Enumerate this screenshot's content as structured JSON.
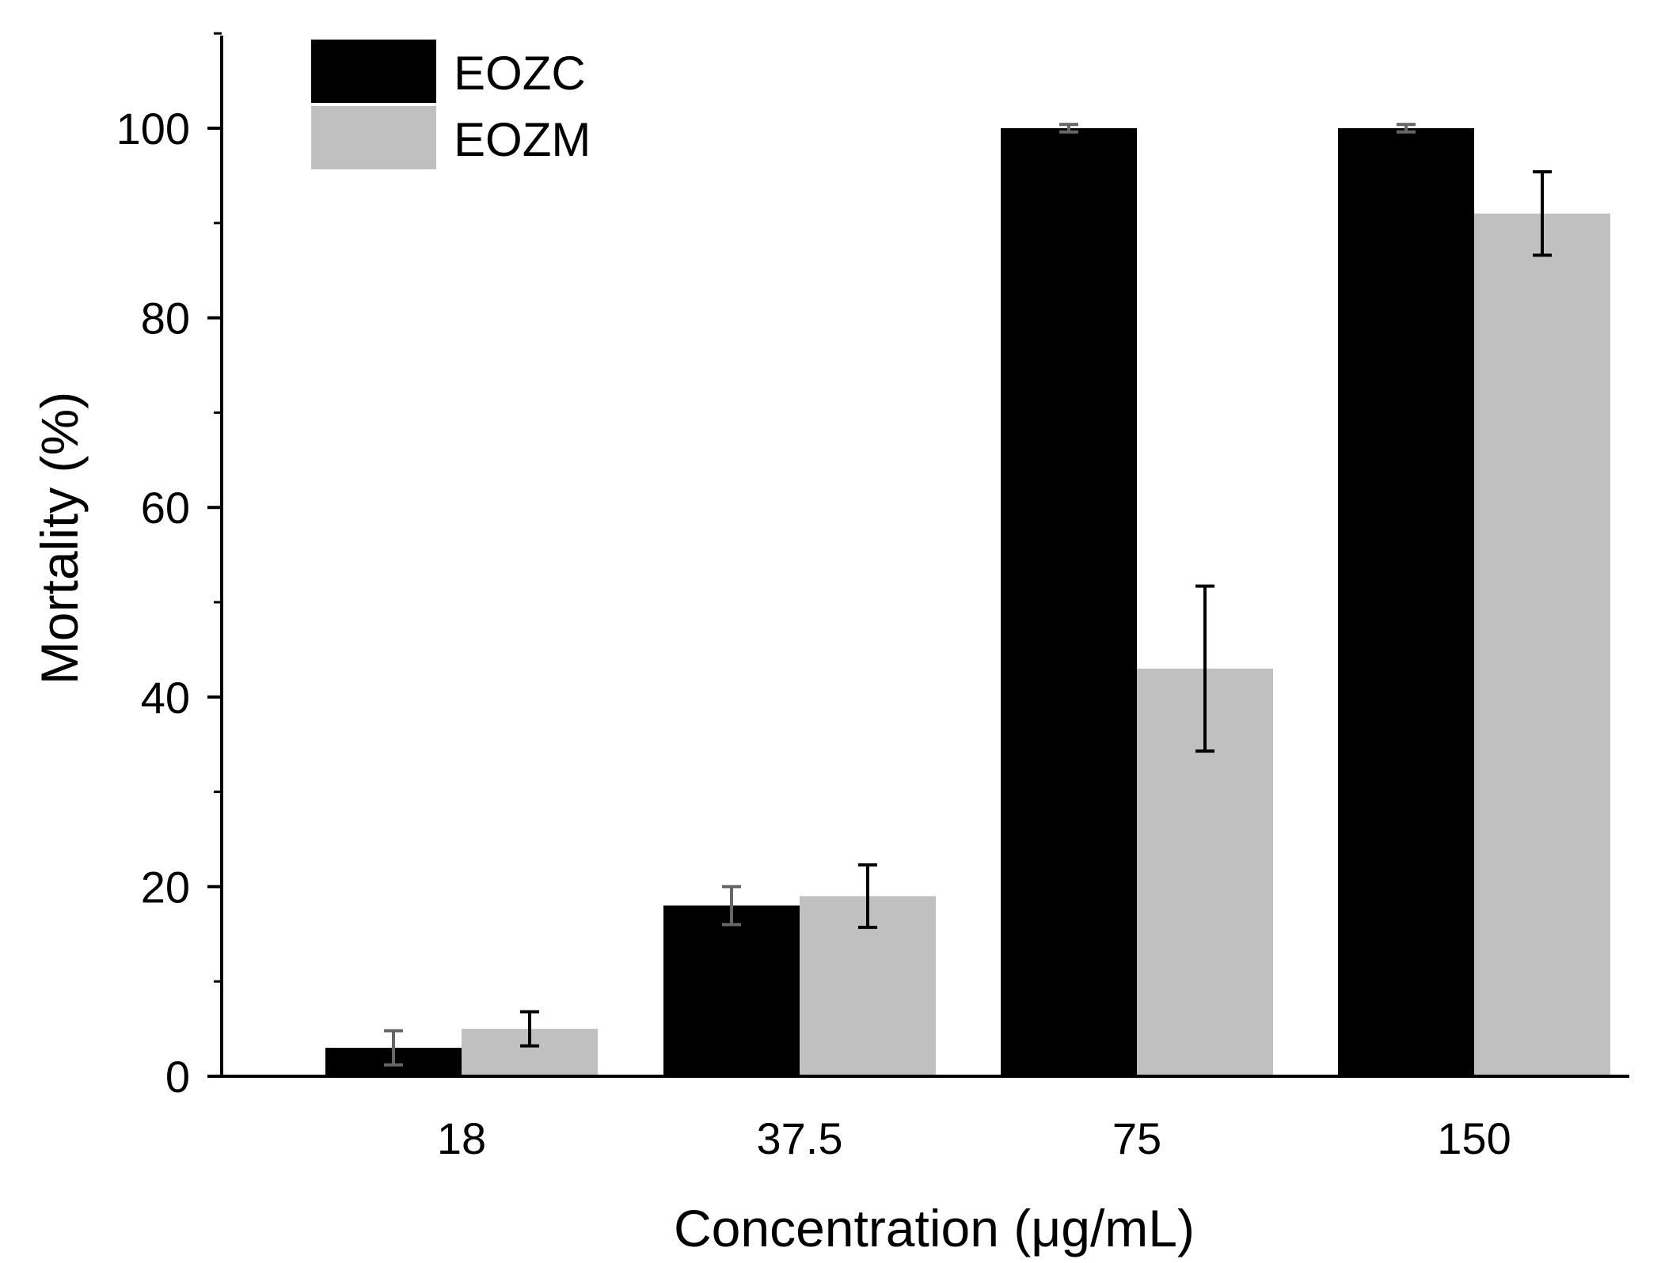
{
  "chart_data": {
    "type": "bar",
    "title": "",
    "xlabel": "Concentration (μg/mL)",
    "ylabel": "Mortality (%)",
    "categories": [
      "18",
      "37.5",
      "75",
      "150"
    ],
    "ylim": [
      0,
      110
    ],
    "yticks": [
      0,
      20,
      40,
      60,
      80,
      100
    ],
    "yticks_labels": [
      "0",
      "20",
      "40",
      "60",
      "80",
      "100"
    ],
    "minor_yticks": [
      10,
      30,
      50,
      70,
      90,
      110
    ],
    "legend_position": "top-left",
    "series": [
      {
        "name": "EOZC",
        "color": "#000000",
        "error_color": "#666666",
        "values": [
          3,
          18,
          100,
          100
        ],
        "errors": [
          1.8,
          2,
          0.4,
          0.4
        ]
      },
      {
        "name": "EOZM",
        "color": "#c0c0c0",
        "error_color": "#000000",
        "values": [
          5,
          19,
          43,
          91
        ],
        "errors": [
          1.8,
          3.3,
          8.7,
          4.4
        ]
      }
    ]
  }
}
